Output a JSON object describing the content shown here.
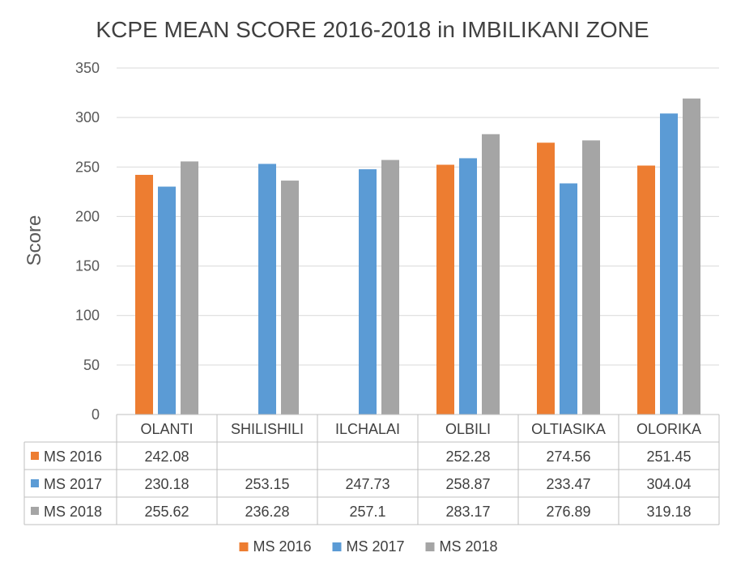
{
  "chart_data": {
    "type": "bar",
    "title": "KCPE MEAN SCORE 2016-2018 in IMBILIKANI ZONE",
    "xlabel": "",
    "ylabel": "Score",
    "ylim": [
      0,
      350
    ],
    "yticks": [
      "0",
      "50",
      "100",
      "150",
      "200",
      "250",
      "300",
      "350"
    ],
    "grid": true,
    "legend_position": "bottom",
    "categories": [
      "OLANTI",
      "SHILISHILI",
      "ILCHALAI",
      "OLBILI",
      "OLTIASIKA",
      "OLORIKA"
    ],
    "series": [
      {
        "name": "MS 2016",
        "color": "#ed7d31",
        "values": [
          242.08,
          null,
          null,
          252.28,
          274.56,
          251.45
        ],
        "labels": [
          "242.08",
          "",
          "",
          "252.28",
          "274.56",
          "251.45"
        ]
      },
      {
        "name": "MS 2017",
        "color": "#5b9bd5",
        "values": [
          230.18,
          253.15,
          247.73,
          258.87,
          233.47,
          304.04
        ],
        "labels": [
          "230.18",
          "253.15",
          "247.73",
          "258.87",
          "233.47",
          "304.04"
        ]
      },
      {
        "name": "MS 2018",
        "color": "#a5a5a5",
        "values": [
          255.62,
          236.28,
          257.1,
          283.17,
          276.89,
          319.18
        ],
        "labels": [
          "255.62",
          "236.28",
          "257.1",
          "283.17",
          "276.89",
          "319.18"
        ]
      }
    ]
  }
}
